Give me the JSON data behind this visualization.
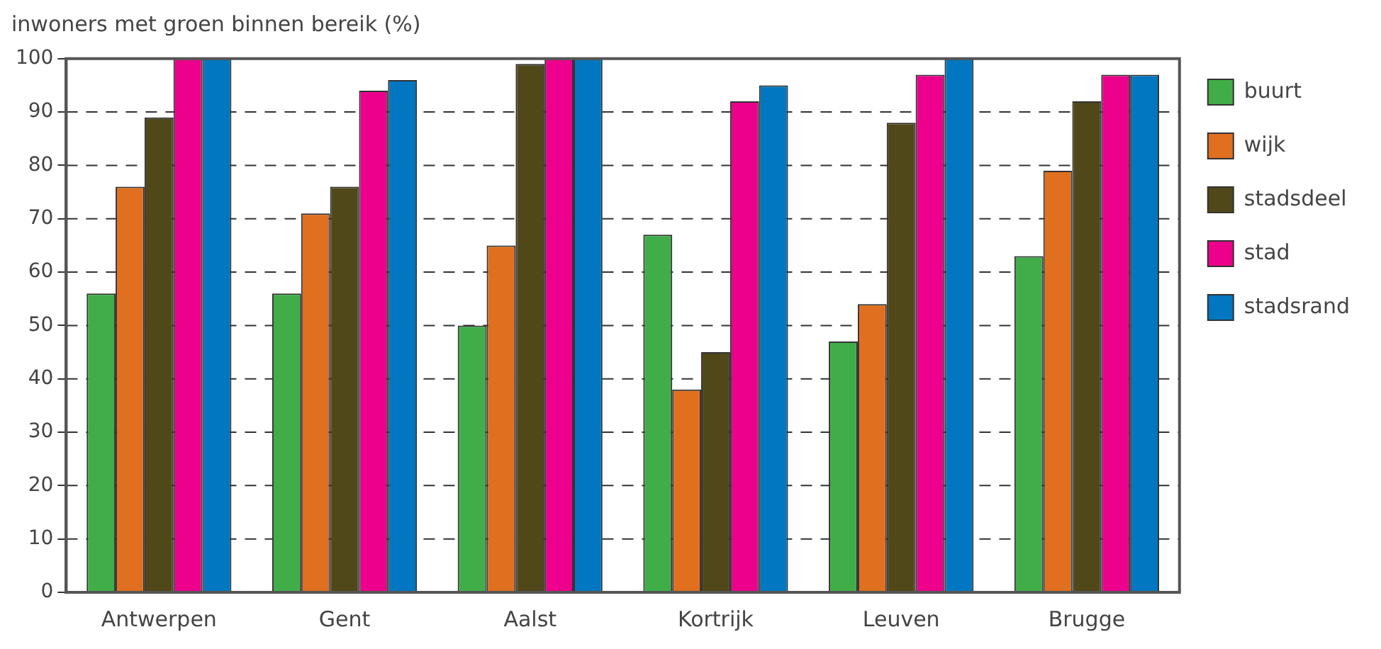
{
  "chart_data": {
    "type": "bar",
    "ylabel": "inwoners met groen binnen bereik (%)",
    "categories": [
      "Antwerpen",
      "Gent",
      "Aalst",
      "Kortrijk",
      "Leuven",
      "Brugge"
    ],
    "series": [
      {
        "name": "buurt",
        "color": "#41ad49",
        "values": [
          56,
          56,
          50,
          67,
          47,
          63
        ]
      },
      {
        "name": "wijk",
        "color": "#e06f1f",
        "values": [
          76,
          71,
          65,
          38,
          54,
          79
        ]
      },
      {
        "name": "stadsdeel",
        "color": "#514819",
        "values": [
          89,
          76,
          99,
          45,
          88,
          92
        ]
      },
      {
        "name": "stad",
        "color": "#ec008c",
        "values": [
          100,
          94,
          100,
          92,
          97,
          97
        ]
      },
      {
        "name": "stadsrand",
        "color": "#0077c0",
        "values": [
          100,
          96,
          100,
          95,
          100,
          97
        ]
      }
    ],
    "ylim": [
      0,
      100
    ],
    "yticks": [
      0,
      10,
      20,
      30,
      40,
      50,
      60,
      70,
      80,
      90,
      100
    ],
    "grid": "y",
    "legend": "right"
  }
}
